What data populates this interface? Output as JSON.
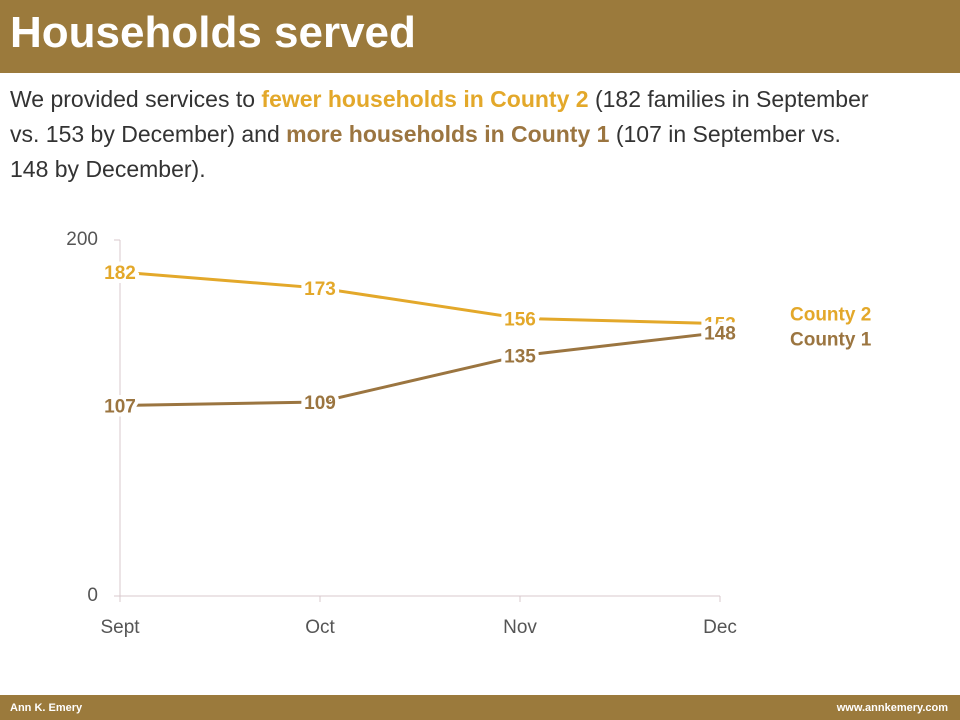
{
  "chart_data": {
    "type": "line",
    "title": "Households served",
    "subtitle": [
      {
        "text": "We provided services to "
      },
      {
        "text": "fewer households in County 2",
        "color": "#e3a82a"
      },
      {
        "text": " (182 families in September vs. 153 by December) and "
      },
      {
        "text": "more households in County 1",
        "color": "#9b7540"
      },
      {
        "text": " (107 in September vs. 148 by December)."
      }
    ],
    "categories": [
      "Sept",
      "Oct",
      "Nov",
      "Dec"
    ],
    "series": [
      {
        "name": "County 2",
        "color": "#e3a82a",
        "values": [
          182,
          173,
          156,
          153
        ]
      },
      {
        "name": "County 1",
        "color": "#9b7540",
        "values": [
          107,
          109,
          135,
          148
        ]
      }
    ],
    "ylim": [
      0,
      200
    ],
    "yticks": [
      0,
      200
    ],
    "grid": false
  },
  "footer": {
    "left": "Ann K. Emery",
    "right": "www.annkemery.com"
  }
}
